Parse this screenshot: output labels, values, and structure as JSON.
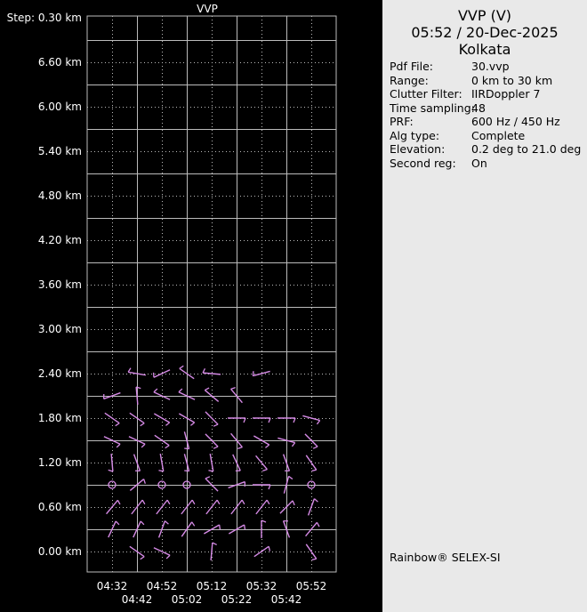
{
  "panel": {
    "title": "VVP (V)",
    "datetime": "05:52 / 20-Dec-2025",
    "site": "Kolkata",
    "info": [
      {
        "key": "Pdf File:",
        "value": "30.vvp"
      },
      {
        "key": "Range:",
        "value": "0 km to 30 km"
      },
      {
        "key": "Clutter Filter:",
        "value": "IIRDoppler 7"
      },
      {
        "key": "Time sampling:",
        "value": "48"
      },
      {
        "key": "PRF:",
        "value": "600 Hz / 450 Hz"
      },
      {
        "key": "Alg type:",
        "value": "Complete"
      },
      {
        "key": "Elevation:",
        "value": "0.2 deg to 21.0 deg"
      },
      {
        "key": "Second reg:",
        "value": "On"
      }
    ],
    "brand": "Rainbow® SELEX-SI"
  },
  "chart_data": {
    "type": "wind-barb",
    "title": "VVP",
    "step_label": "Step: 0.30 km",
    "y_ticks": [
      "6.60 km",
      "6.00 km",
      "5.40 km",
      "4.80 km",
      "4.20 km",
      "3.60 km",
      "3.00 km",
      "2.40 km",
      "1.80 km",
      "1.20 km",
      "0.60 km",
      "0.00 km"
    ],
    "y_tick_values": [
      6.6,
      6.0,
      5.4,
      4.8,
      4.2,
      3.6,
      3.0,
      2.4,
      1.8,
      1.2,
      0.6,
      0.0
    ],
    "ylim": [
      0.0,
      6.9
    ],
    "times": [
      "04:32",
      "04:42",
      "04:52",
      "05:02",
      "05:12",
      "05:22",
      "05:32",
      "05:42",
      "05:52"
    ],
    "heights": [
      0.0,
      0.3,
      0.6,
      0.9,
      1.2,
      1.5,
      1.8,
      2.1,
      2.4
    ],
    "barb_color": "#d68be6",
    "grid_color": "#bbbbbb",
    "barbs": {
      "2.4": [
        null,
        280,
        245,
        305,
        275,
        null,
        255,
        null,
        null
      ],
      "2.1": [
        250,
        355,
        295,
        295,
        310,
        320,
        null,
        null,
        null
      ],
      "1.8": [
        125,
        125,
        120,
        120,
        135,
        90,
        90,
        90,
        105
      ],
      "1.5": [
        115,
        115,
        125,
        165,
        135,
        140,
        120,
        105,
        135
      ],
      "1.2": [
        175,
        160,
        170,
        165,
        170,
        155,
        140,
        160,
        145
      ],
      "0.9": [
        "calm",
        50,
        "calm",
        "calm",
        315,
        70,
        90,
        15,
        "calm"
      ],
      "0.6": [
        40,
        38,
        38,
        38,
        38,
        38,
        38,
        45,
        20
      ],
      "0.3": [
        25,
        25,
        20,
        35,
        60,
        60,
        0,
        340,
        40
      ],
      "0.0": [
        null,
        125,
        115,
        null,
        5,
        null,
        55,
        null,
        145
      ]
    }
  }
}
